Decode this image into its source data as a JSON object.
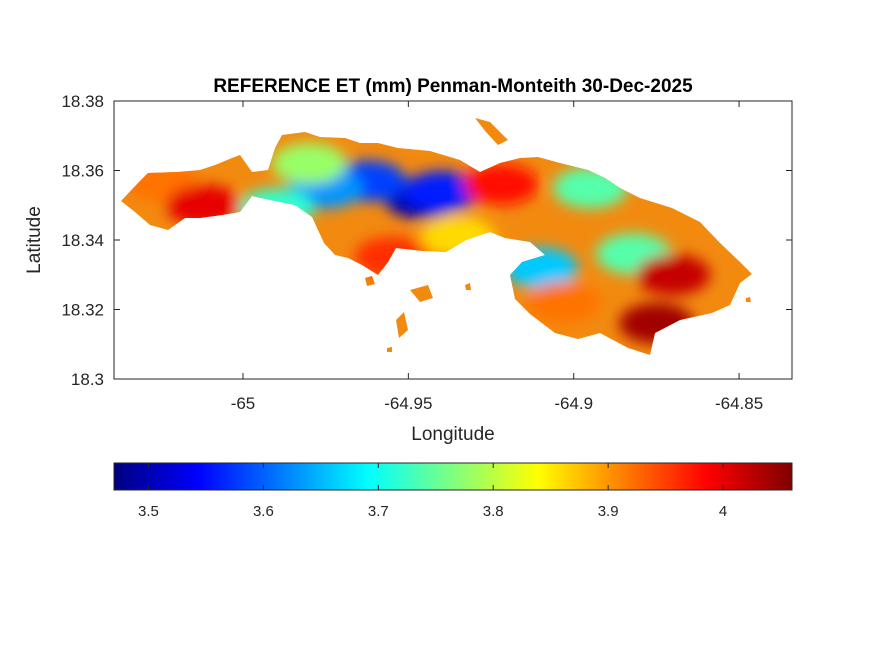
{
  "chart_data": {
    "type": "heatmap",
    "title": "REFERENCE ET (mm) Penman-Monteith 30-Dec-2025",
    "xlabel": "Longitude",
    "ylabel": "Latitude",
    "xlim": [
      -65.039,
      -64.834
    ],
    "ylim": [
      18.3,
      18.38
    ],
    "x_ticks": [
      -65,
      -64.95,
      -64.9,
      -64.85
    ],
    "x_tick_labels": [
      "-65",
      "-64.95",
      "-64.9",
      "-64.85"
    ],
    "y_ticks": [
      18.3,
      18.32,
      18.34,
      18.36,
      18.38
    ],
    "y_tick_labels": [
      "18.3",
      "18.32",
      "18.34",
      "18.36",
      "18.38"
    ],
    "colormap": "jet",
    "clim": [
      3.47,
      4.06
    ],
    "colorbar": {
      "location": "southoutside",
      "ticks": [
        3.5,
        3.6,
        3.7,
        3.8,
        3.9,
        4.0
      ],
      "tick_labels": [
        "3.5",
        "3.6",
        "3.7",
        "3.8",
        "3.9",
        "4"
      ]
    },
    "grid": false,
    "highlights": [
      {
        "lon": -64.946,
        "lat": 18.352,
        "value": 3.5
      },
      {
        "lon": -64.962,
        "lat": 18.357,
        "value": 3.58
      },
      {
        "lon": -64.975,
        "lat": 18.355,
        "value": 3.63
      },
      {
        "lon": -64.94,
        "lat": 18.354,
        "value": 3.56
      },
      {
        "lon": -64.91,
        "lat": 18.332,
        "value": 3.66
      },
      {
        "lon": -64.882,
        "lat": 18.336,
        "value": 3.74
      },
      {
        "lon": -64.895,
        "lat": 18.355,
        "value": 3.74
      },
      {
        "lon": -64.99,
        "lat": 18.349,
        "value": 3.72
      },
      {
        "lon": -64.98,
        "lat": 18.362,
        "value": 3.78
      },
      {
        "lon": -65.025,
        "lat": 18.357,
        "value": 3.92
      },
      {
        "lon": -65.012,
        "lat": 18.35,
        "value": 4.0
      },
      {
        "lon": -64.87,
        "lat": 18.33,
        "value": 4.02
      },
      {
        "lon": -64.875,
        "lat": 18.316,
        "value": 4.04
      },
      {
        "lon": -64.903,
        "lat": 18.322,
        "value": 3.92
      },
      {
        "lon": -64.922,
        "lat": 18.356,
        "value": 3.98
      },
      {
        "lon": -64.935,
        "lat": 18.341,
        "value": 3.86
      },
      {
        "lon": -64.955,
        "lat": 18.335,
        "value": 3.96
      }
    ]
  }
}
